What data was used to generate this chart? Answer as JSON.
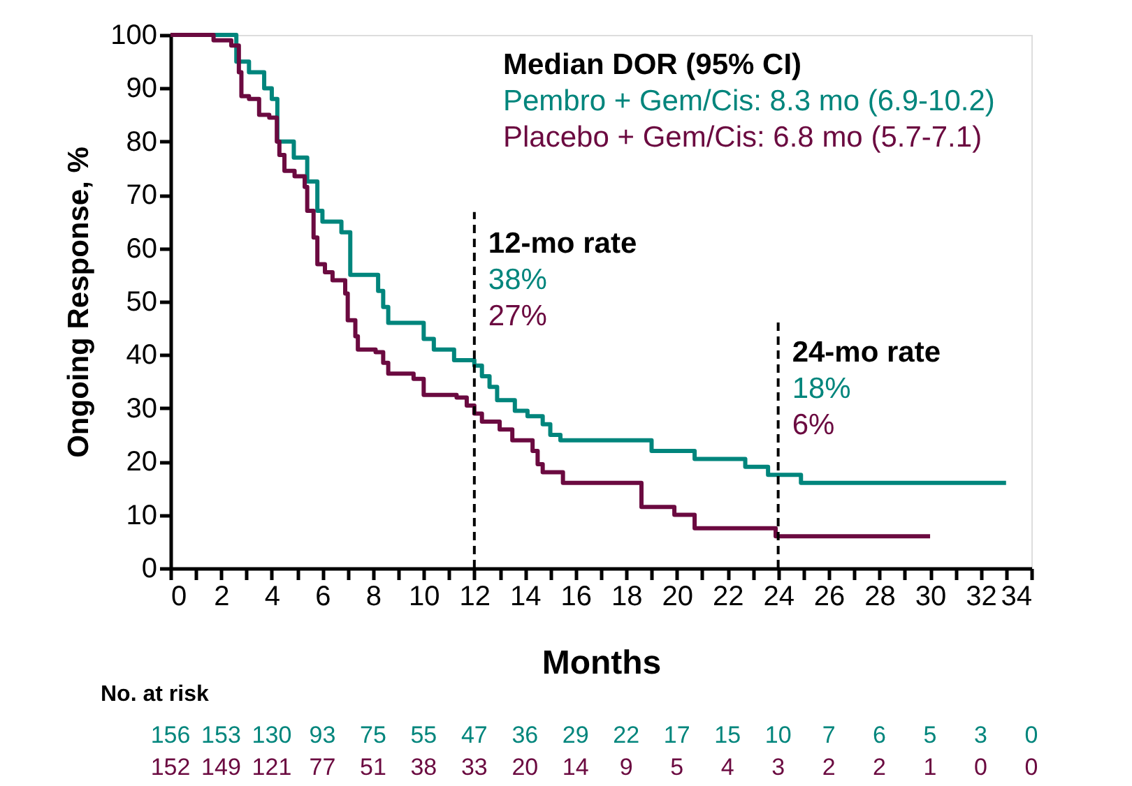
{
  "chart_data": {
    "type": "step",
    "xlabel": "Months",
    "ylabel": "Ongoing Response, %",
    "legend_title": "Median DOR (95% CI)",
    "legend": "top right",
    "grid": false,
    "line_style": "solid",
    "marker": "none",
    "xlim": [
      0,
      34
    ],
    "ylim": [
      0,
      100
    ],
    "xticks": [
      0,
      {
        "value": 1,
        "label": null
      },
      2,
      {
        "value": 3,
        "label": null
      },
      4,
      {
        "value": 5,
        "label": null
      },
      6,
      {
        "value": 7,
        "label": null
      },
      8,
      {
        "value": 9,
        "label": null
      },
      10,
      {
        "value": 11,
        "label": null
      },
      12,
      {
        "value": 13,
        "label": null
      },
      14,
      {
        "value": 15,
        "label": null
      },
      16,
      {
        "value": 17,
        "label": null
      },
      18,
      {
        "value": 19,
        "label": null
      },
      20,
      {
        "value": 21,
        "label": null
      },
      22,
      {
        "value": 23,
        "label": null
      },
      24,
      {
        "value": 25,
        "label": null
      },
      26,
      {
        "value": 27,
        "label": null
      },
      28,
      {
        "value": 29,
        "label": null
      },
      30,
      {
        "value": 31,
        "label": null
      },
      32,
      {
        "value": 33,
        "label": null
      },
      34
    ],
    "yticks": [
      0,
      10,
      20,
      30,
      40,
      50,
      60,
      70,
      80,
      90,
      100
    ],
    "series": [
      {
        "name": "Pembro + Gem/Cis: 8.3 mo (6.9-10.2)",
        "color": "#00857c",
        "x": [
          0,
          2.55,
          2.6,
          3.1,
          3.7,
          4.0,
          4.22,
          4.87,
          5.4,
          5.8,
          6.0,
          6.75,
          7.1,
          8.2,
          8.4,
          8.6,
          10,
          10.4,
          11.2,
          12,
          12.3,
          12.6,
          12.9,
          13.6,
          14.1,
          14.7,
          15,
          15.4,
          19,
          20.7,
          22.7,
          23.6,
          24.9,
          33
        ],
        "values": [
          100,
          100,
          95,
          93,
          90,
          88,
          80,
          77,
          72.5,
          67,
          65,
          63,
          55,
          52,
          49,
          46,
          43,
          41,
          39,
          38,
          36,
          34,
          31.5,
          29.5,
          28.5,
          27,
          25,
          24,
          22,
          20.5,
          19,
          17.5,
          16,
          16
        ]
      },
      {
        "name": "Placebo + Gem/Cis: 6.8 mo (5.7-7.1)",
        "color": "#6b0a40",
        "x": [
          0,
          1.7,
          2.4,
          2.7,
          2.8,
          3.1,
          3.5,
          3.9,
          4.2,
          4.3,
          4.5,
          4.9,
          5.3,
          5.4,
          5.65,
          5.8,
          6.1,
          6.4,
          6.9,
          7.0,
          7.3,
          7.4,
          8.1,
          8.4,
          8.6,
          9.6,
          10,
          11.3,
          11.7,
          12,
          12.3,
          13,
          13.5,
          14.3,
          14.5,
          14.7,
          15.5,
          18.6,
          19.9,
          20.7,
          23.9,
          30
        ],
        "values": [
          100,
          99,
          98,
          93,
          88.5,
          88,
          85,
          84.5,
          80,
          77.5,
          74.5,
          73.5,
          71.5,
          67,
          62,
          57,
          55.5,
          54,
          51.5,
          46.5,
          43.5,
          41,
          40.5,
          38.5,
          36.5,
          35.5,
          32.5,
          32,
          30.5,
          29,
          27.5,
          26,
          24,
          22,
          19.5,
          18,
          16,
          11.5,
          10,
          7.5,
          6,
          6
        ]
      }
    ],
    "ref_lines": [
      {
        "axis": "x",
        "value": 12,
        "line_style": "dashed",
        "color": "#000000"
      },
      {
        "axis": "x",
        "value": 24,
        "line_style": "dashed",
        "color": "#000000"
      }
    ],
    "annotations": [
      "12-mo rate",
      "38%",
      "27%",
      "24-mo rate",
      "18%",
      "6%",
      "No. at risk",
      "156 153 130 93 75 55 47 36 29 22 17 15 10 7 6 5 3 0",
      "152 149 121 77 51 38 33 20 14 9 5 4 3 2 2 1 0 0"
    ]
  }
}
